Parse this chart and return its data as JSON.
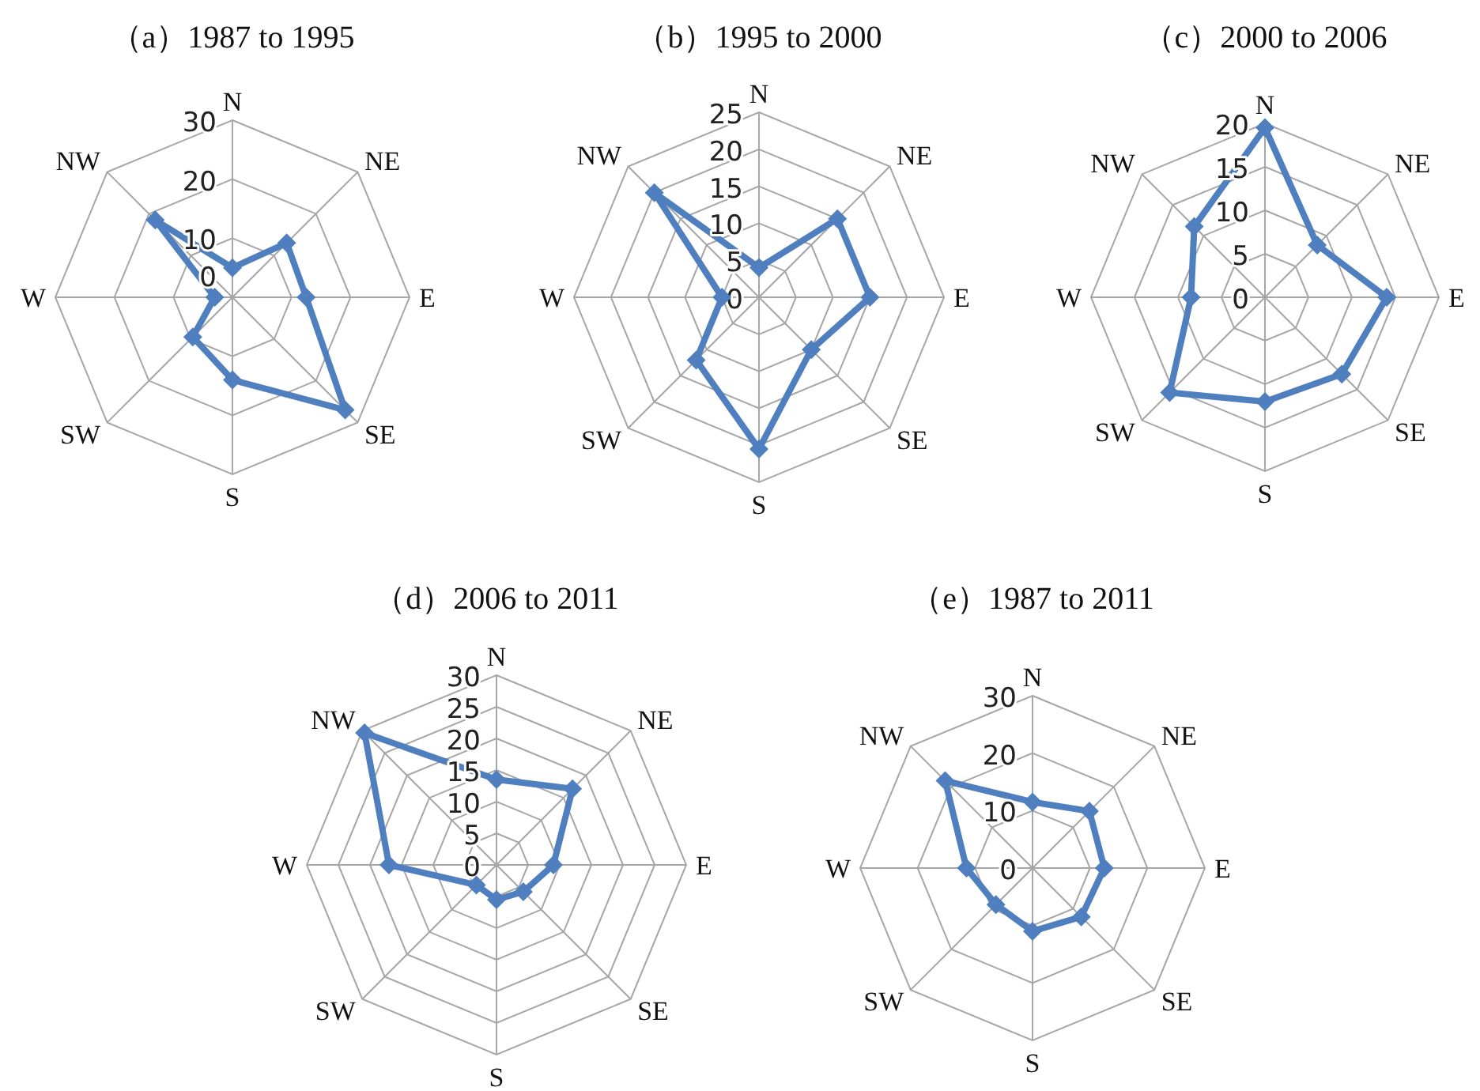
{
  "chart_data": [
    {
      "type": "radar",
      "title": "（a）1987 to 1995",
      "categories": [
        "N",
        "NE",
        "E",
        "SE",
        "S",
        "SW",
        "W",
        "NW"
      ],
      "ylim": [
        0,
        30
      ],
      "yticks": [
        0,
        10,
        20,
        30
      ],
      "grid": true,
      "marker": "diamond",
      "series": [
        {
          "color": "#4f7fbf",
          "values": [
            5,
            13,
            12.5,
            27,
            14,
            9.5,
            3,
            18.5
          ]
        }
      ]
    },
    {
      "type": "radar",
      "title": "（b）1995 to 2000",
      "categories": [
        "N",
        "NE",
        "E",
        "SE",
        "S",
        "SW",
        "W",
        "NW"
      ],
      "ylim": [
        0,
        25
      ],
      "yticks": [
        0,
        5,
        10,
        15,
        20,
        25
      ],
      "grid": true,
      "marker": "diamond",
      "series": [
        {
          "color": "#4f7fbf",
          "values": [
            4,
            15,
            15,
            10,
            20.5,
            12,
            5,
            20
          ]
        }
      ]
    },
    {
      "type": "radar",
      "title": "（c）2000 to 2006",
      "categories": [
        "N",
        "NE",
        "E",
        "SE",
        "S",
        "SW",
        "W",
        "NW"
      ],
      "ylim": [
        0,
        20
      ],
      "yticks": [
        0,
        5,
        10,
        15,
        20
      ],
      "grid": true,
      "marker": "diamond",
      "series": [
        {
          "color": "#4f7fbf",
          "values": [
            19.5,
            8.5,
            14,
            12.5,
            12,
            15.5,
            8.5,
            11.5
          ]
        }
      ]
    },
    {
      "type": "radar",
      "title": "（d）2006 to 2011",
      "categories": [
        "N",
        "NE",
        "E",
        "SE",
        "S",
        "SW",
        "W",
        "NW"
      ],
      "ylim": [
        0,
        30
      ],
      "yticks": [
        0,
        5,
        10,
        15,
        20,
        25,
        30
      ],
      "grid": true,
      "marker": "diamond",
      "series": [
        {
          "color": "#4f7fbf",
          "values": [
            13.5,
            17,
            9,
            6,
            5.5,
            4.5,
            17,
            29.5
          ]
        }
      ]
    },
    {
      "type": "radar",
      "title": "（e）1987 to 2011",
      "categories": [
        "N",
        "NE",
        "E",
        "SE",
        "S",
        "SW",
        "W",
        "NW"
      ],
      "ylim": [
        0,
        30
      ],
      "yticks": [
        0,
        10,
        20,
        30
      ],
      "grid": true,
      "marker": "diamond",
      "series": [
        {
          "color": "#4f7fbf",
          "values": [
            11.5,
            14,
            12.5,
            12,
            11,
            9,
            11.5,
            21.5
          ]
        }
      ]
    }
  ]
}
